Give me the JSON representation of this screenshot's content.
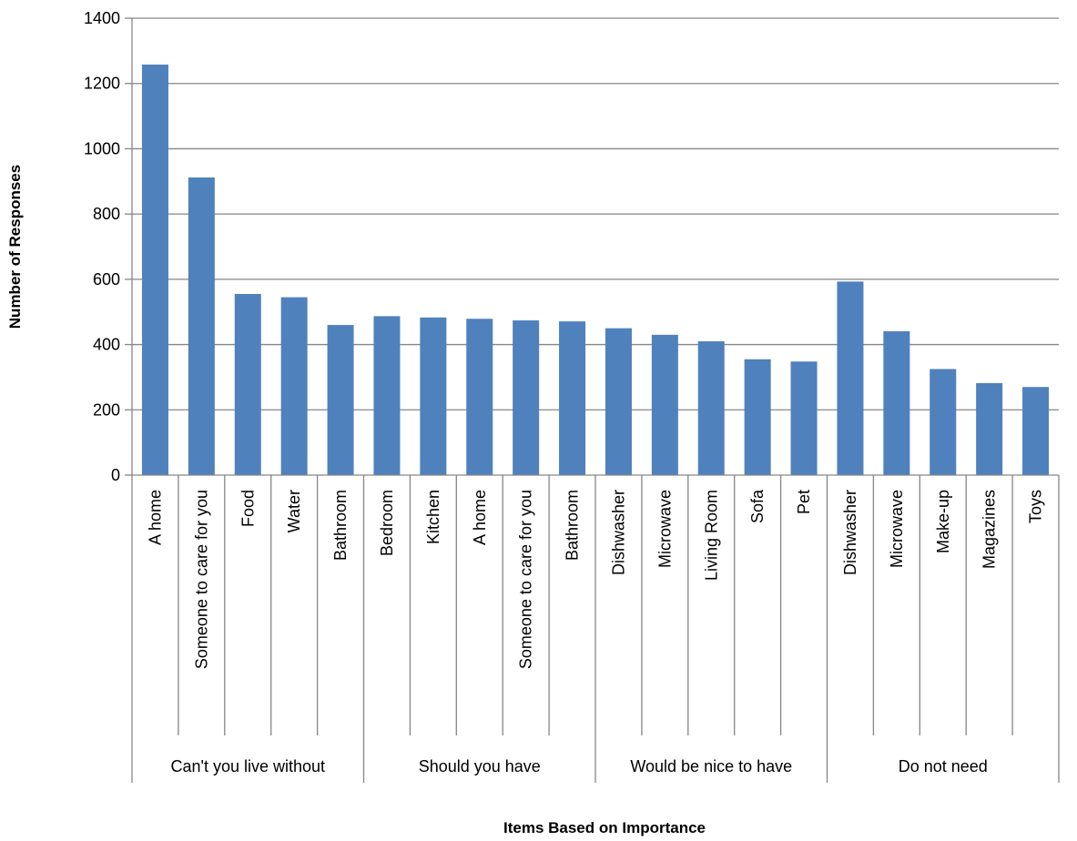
{
  "chart_data": {
    "type": "bar",
    "xlabel": "Items Based on Importance",
    "ylabel": "Number of Responses",
    "ylim": [
      0,
      1400
    ],
    "yticks": [
      0,
      200,
      400,
      600,
      800,
      1000,
      1200,
      1400
    ],
    "grid": true,
    "legend": "none",
    "bar_color": "#4F81BD",
    "grid_color": "#868686",
    "groups": [
      {
        "label": "Can't you live without",
        "categories": [
          "A home",
          "Someone to care for you",
          "Food",
          "Water",
          "Bathroom"
        ]
      },
      {
        "label": "Should you have",
        "categories": [
          "Bedroom",
          "Kitchen",
          "A home",
          "Someone to care for you",
          "Bathroom"
        ]
      },
      {
        "label": "Would be nice to have",
        "categories": [
          "Dishwasher",
          "Microwave",
          "Living Room",
          "Sofa",
          "Pet"
        ]
      },
      {
        "label": "Do not need",
        "categories": [
          "Dishwasher",
          "Microwave",
          "Make-up",
          "Magazines",
          "Toys"
        ]
      }
    ],
    "categories": [
      "A home",
      "Someone to care for you",
      "Food",
      "Water",
      "Bathroom",
      "Bedroom",
      "Kitchen",
      "A home",
      "Someone to care for you",
      "Bathroom",
      "Dishwasher",
      "Microwave",
      "Living Room",
      "Sofa",
      "Pet",
      "Dishwasher",
      "Microwave",
      "Make-up",
      "Magazines",
      "Toys"
    ],
    "values": [
      1258,
      912,
      555,
      545,
      460,
      487,
      483,
      479,
      474,
      471,
      450,
      430,
      410,
      355,
      348,
      593,
      441,
      325,
      282,
      270
    ]
  }
}
